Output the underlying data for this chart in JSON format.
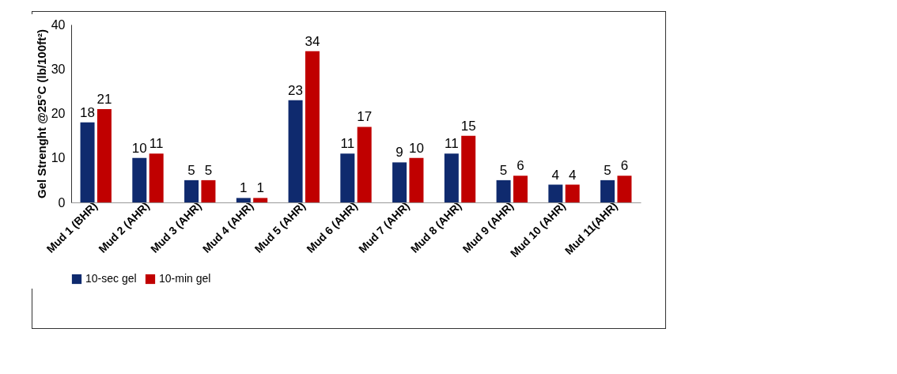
{
  "chart_data": {
    "type": "bar",
    "ylabel": "Gel Strenght @25°C (lb/100ft²)",
    "categories": [
      "Mud 1 (BHR)",
      "Mud 2  (AHR)",
      "Mud 3  (AHR)",
      "Mud 4  (AHR)",
      "Mud 5  (AHR)",
      "Mud 6   (AHR)",
      "Mud 7   (AHR)",
      "Mud 8  (AHR)",
      "Mud 9  (AHR)",
      "Mud 10 (AHR)",
      "Mud 11(AHR)"
    ],
    "series": [
      {
        "name": "10-sec gel",
        "color": "#0f2a6e",
        "values": [
          18,
          10,
          5,
          1,
          23,
          11,
          9,
          11,
          5,
          4,
          5
        ]
      },
      {
        "name": "10-min gel",
        "color": "#c00000",
        "values": [
          21,
          11,
          5,
          1,
          34,
          17,
          10,
          15,
          6,
          4,
          6
        ]
      }
    ],
    "ylim": [
      0,
      40
    ],
    "yticks": [
      0,
      10,
      20,
      30,
      40
    ],
    "grid": false,
    "legend": "bottom",
    "data_labels": true
  }
}
